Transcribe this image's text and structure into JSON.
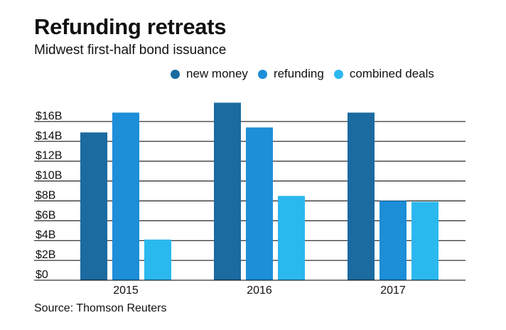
{
  "header": {
    "title": "Refunding retreats",
    "subtitle": "Midwest first-half bond issuance"
  },
  "legend": [
    {
      "label": "new money",
      "color": "#1b6aa0"
    },
    {
      "label": "refunding",
      "color": "#1d8ed8"
    },
    {
      "label": "combined deals",
      "color": "#2bb8ef"
    }
  ],
  "source": "Source: Thomson Reuters",
  "chart_data": {
    "type": "bar",
    "categories": [
      "2015",
      "2016",
      "2017"
    ],
    "series": [
      {
        "name": "new money",
        "values": [
          14.9,
          17.9,
          16.9
        ],
        "color": "#1b6aa0"
      },
      {
        "name": "refunding",
        "values": [
          16.9,
          15.4,
          8.0
        ],
        "color": "#1d8ed8"
      },
      {
        "name": "combined deals",
        "values": [
          4.1,
          8.5,
          7.9
        ],
        "color": "#2bb8ef"
      }
    ],
    "y_ticks": [
      "$0",
      "$2B",
      "$4B",
      "$6B",
      "$8B",
      "$10B",
      "$12B",
      "$14B",
      "$16B"
    ],
    "ylim": [
      0,
      18
    ],
    "grid": true,
    "legend_position": "top-right"
  }
}
